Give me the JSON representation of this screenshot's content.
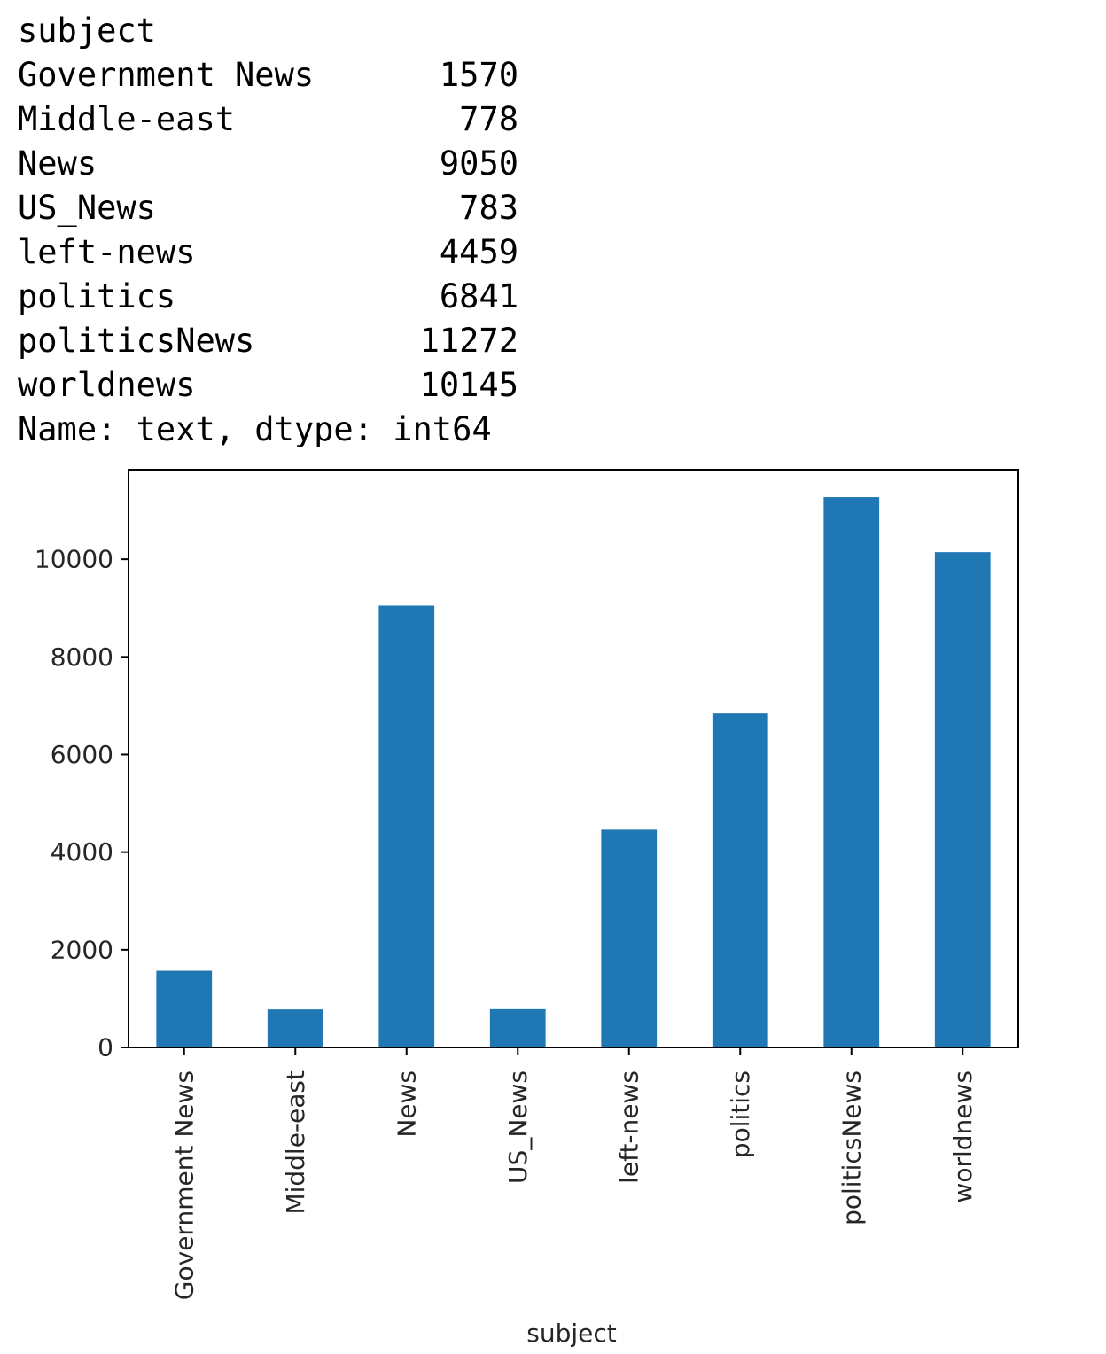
{
  "output_text": {
    "header": "subject",
    "rows": [
      {
        "label": "Government News",
        "value": "1570"
      },
      {
        "label": "Middle-east",
        "value": "778"
      },
      {
        "label": "News",
        "value": "9050"
      },
      {
        "label": "US_News",
        "value": "783"
      },
      {
        "label": "left-news",
        "value": "4459"
      },
      {
        "label": "politics",
        "value": "6841"
      },
      {
        "label": "politicsNews",
        "value": "11272"
      },
      {
        "label": "worldnews",
        "value": "10145"
      }
    ],
    "footer": "Name: text, dtype: int64"
  },
  "chart_data": {
    "type": "bar",
    "categories": [
      "Government News",
      "Middle-east",
      "News",
      "US_News",
      "left-news",
      "politics",
      "politicsNews",
      "worldnews"
    ],
    "values": [
      1570,
      778,
      9050,
      783,
      4459,
      6841,
      11272,
      10145
    ],
    "xlabel": "subject",
    "ylabel": "",
    "ylim": [
      0,
      11836
    ],
    "yticks": [
      0,
      2000,
      4000,
      6000,
      8000,
      10000
    ],
    "bar_color": "#1f77b4",
    "grid": false,
    "legend": "none"
  }
}
